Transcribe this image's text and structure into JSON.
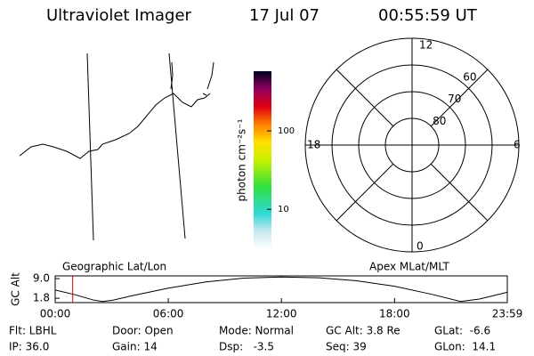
{
  "header": {
    "title": "Ultraviolet Imager",
    "date": "17 Jul 07",
    "time": "00:55:59 UT"
  },
  "colorbar": {
    "label": "photon cm⁻²s⁻¹",
    "lim": [
      3.1,
      577
    ],
    "log": true,
    "ticks": [
      10,
      100
    ]
  },
  "polar": {
    "lat_lim": 50,
    "lat_rings": [
      80,
      70,
      60
    ],
    "mlt_top": "12",
    "mlt_right": "6",
    "mlt_bottom": "0",
    "mlt_left": "18"
  },
  "chart_data": {
    "type": "line",
    "ylabel": "GC Alt",
    "left_label": "Geographic Lat/Lon",
    "right_label": "Apex MLat/MLT",
    "x": [
      0,
      1,
      2,
      2.5,
      3,
      4,
      6,
      8,
      10,
      12,
      14,
      16,
      18,
      20,
      21.5,
      22.5,
      23.98
    ],
    "series": [
      {
        "color": "#000000",
        "values": [
          4.8,
          3.2,
          1.2,
          0.6,
          1.0,
          2.6,
          5.5,
          7.8,
          9.2,
          9.6,
          9.3,
          8.2,
          6.2,
          3.2,
          0.6,
          1.5,
          4.0
        ]
      }
    ],
    "marker_x": 0.93,
    "marker_color": "#cc0000",
    "xlim": [
      0,
      23.98
    ],
    "xticks": [
      {
        "value": 0,
        "label": "00:00"
      },
      {
        "value": 6,
        "label": "06:00"
      },
      {
        "value": 12,
        "label": "12:00"
      },
      {
        "value": 18,
        "label": "18:00"
      },
      {
        "value": 23.98,
        "label": "23:59"
      }
    ],
    "ylim": [
      0.2,
      10
    ],
    "yticks": [
      {
        "value": 1.8,
        "label": "1.8"
      },
      {
        "value": 9.0,
        "label": "9.0"
      }
    ]
  },
  "info": [
    [
      "Flt: LBHL",
      "Door: Open",
      "Mode: Normal",
      "GC Alt: 3.8 Re",
      "GLat:  -6.6"
    ],
    [
      "IP: 36.0",
      "Gain: 14",
      "Dsp:   -3.5",
      "Seq: 39",
      "GLon:  14.1"
    ]
  ]
}
